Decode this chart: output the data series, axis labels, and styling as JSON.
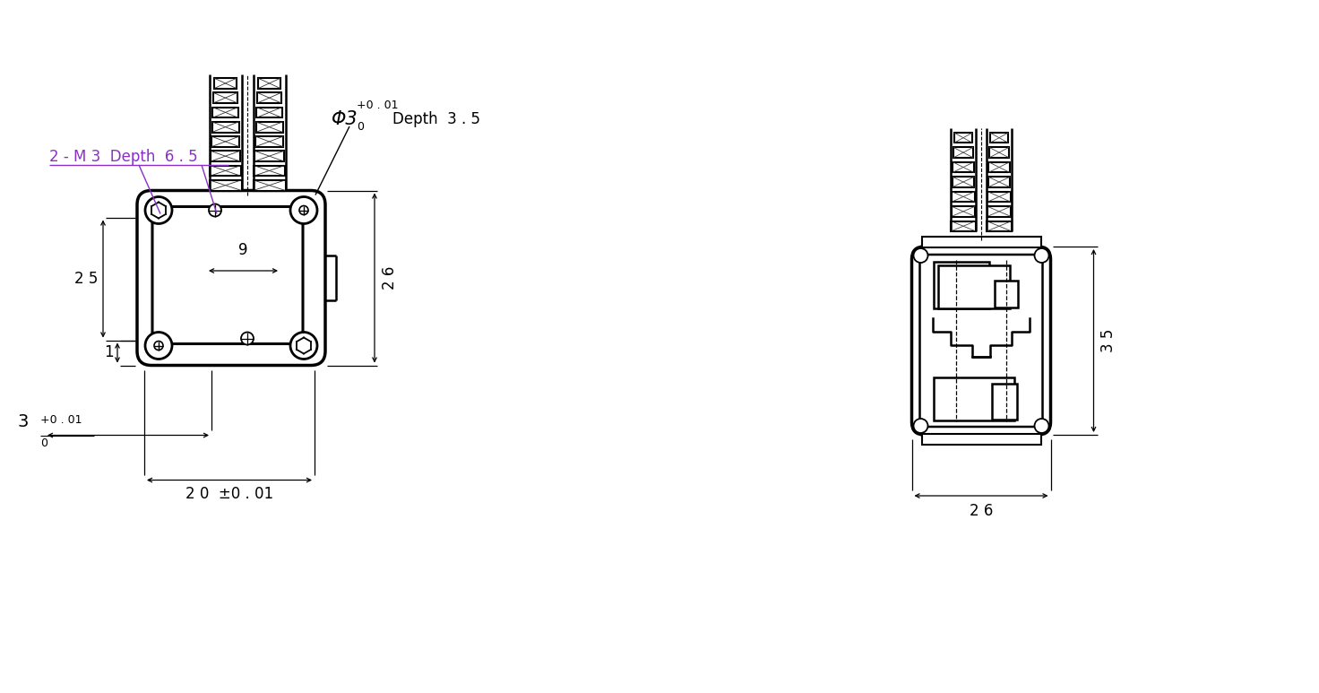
{
  "bg_color": "#ffffff",
  "lc": "#000000",
  "dc": "#000000",
  "ac": "#8b2fc9",
  "figsize": [
    14.72,
    7.73
  ],
  "dpi": 100,
  "annotations": {
    "m3_depth": "2 - M 3  Depth  6 . 5",
    "phi3_label": "Φ3",
    "phi3_tol_top": "+0 . 01",
    "phi3_tol_bot": "0",
    "depth35": "Depth  3 . 5",
    "dim_25": "2 5",
    "dim_26_left": "2 6",
    "dim_26_right": "2 6",
    "dim_35": "3 5",
    "dim_9": "9",
    "dim_1": "1",
    "dim_3": "3",
    "dim_3_tol_top": "+0 . 01",
    "dim_3_tol_bot": "0",
    "dim_20": "2 0  ±0 . 01"
  }
}
